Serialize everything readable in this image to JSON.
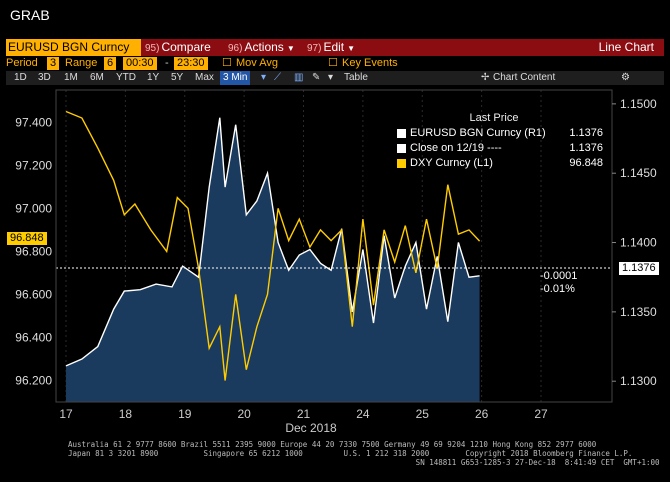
{
  "app_title": "GRAB",
  "toolbar": {
    "security": "EURUSD BGN Curncy",
    "compare_num": "95)",
    "compare": "Compare",
    "actions_num": "96)",
    "actions": "Actions",
    "edit_num": "97)",
    "edit": "Edit",
    "view_title": "Line Chart"
  },
  "settings": {
    "period_label": "Period",
    "period_value": "3",
    "range_label": "Range",
    "range_value": "6",
    "time_from": "00:30",
    "time_to": "23:30",
    "mov_avg": "Mov Avg",
    "key_events": "Key Events"
  },
  "range_tabs": {
    "items": [
      "1D",
      "3D",
      "1M",
      "6M",
      "YTD",
      "1Y",
      "5Y",
      "Max"
    ],
    "selected": "3 Min",
    "table": "Table",
    "chart_content": "Chart Content"
  },
  "legend": {
    "header": "Last Price",
    "rows": [
      {
        "label": "EURUSD BGN Curncy  (R1)",
        "value": "1.1376",
        "color": "#ffffff"
      },
      {
        "label": "Close on 12/19 ----",
        "value": "1.1376",
        "color": "#ffffff"
      },
      {
        "label": "DXY Curncy  (L1)",
        "value": "96.848",
        "color": "#ffcc00"
      }
    ]
  },
  "tags": {
    "left_value": "96.848",
    "right_value": "1.1376",
    "change": "-0.0001",
    "change_pct": "-0.01%"
  },
  "chart_data": {
    "type": "line",
    "x_ticks": [
      "17",
      "18",
      "19",
      "20",
      "21",
      "24",
      "25",
      "26",
      "27"
    ],
    "x_sublabel": "Dec 2018",
    "left_axis": {
      "ticks": [
        96.2,
        96.4,
        96.6,
        96.8,
        97.0,
        97.2,
        97.4
      ],
      "labels": [
        "96.200",
        "96.400",
        "96.600",
        "96.800",
        "97.000",
        "97.200",
        "97.400"
      ],
      "range": [
        96.1,
        97.55
      ]
    },
    "right_axis": {
      "ticks": [
        1.13,
        1.135,
        1.14,
        1.145,
        1.15
      ],
      "labels": [
        "1.1300",
        "1.1350",
        "1.1400",
        "1.1450",
        "1.1500"
      ],
      "range": [
        1.1285,
        1.151
      ]
    },
    "series": [
      {
        "name": "EURUSD BGN Curncy",
        "axis": "right",
        "color": "#ffffff",
        "fill": "#1a3a5e",
        "points": [
          [
            0,
            1.1311
          ],
          [
            0.3,
            1.1316
          ],
          [
            0.6,
            1.1325
          ],
          [
            0.9,
            1.1352
          ],
          [
            1.1,
            1.1365
          ],
          [
            1.4,
            1.1366
          ],
          [
            1.7,
            1.137
          ],
          [
            2.0,
            1.1368
          ],
          [
            2.2,
            1.1383
          ],
          [
            2.5,
            1.1375
          ],
          [
            2.7,
            1.144
          ],
          [
            2.9,
            1.149
          ],
          [
            3.0,
            1.144
          ],
          [
            3.2,
            1.1485
          ],
          [
            3.4,
            1.142
          ],
          [
            3.6,
            1.143
          ],
          [
            3.8,
            1.145
          ],
          [
            4.0,
            1.14
          ],
          [
            4.2,
            1.138
          ],
          [
            4.4,
            1.1391
          ],
          [
            4.6,
            1.1395
          ],
          [
            4.8,
            1.1385
          ],
          [
            5.0,
            1.138
          ],
          [
            5.2,
            1.141
          ],
          [
            5.4,
            1.135
          ],
          [
            5.6,
            1.1395
          ],
          [
            5.8,
            1.1342
          ],
          [
            6.0,
            1.1405
          ],
          [
            6.2,
            1.136
          ],
          [
            6.4,
            1.1383
          ],
          [
            6.6,
            1.14
          ],
          [
            6.8,
            1.1352
          ],
          [
            7.0,
            1.139
          ],
          [
            7.2,
            1.1343
          ],
          [
            7.4,
            1.14
          ],
          [
            7.6,
            1.1375
          ],
          [
            7.8,
            1.1376
          ]
        ]
      },
      {
        "name": "DXY Curncy",
        "axis": "left",
        "color": "#ffcc00",
        "points": [
          [
            0,
            97.45
          ],
          [
            0.3,
            97.42
          ],
          [
            0.6,
            97.28
          ],
          [
            0.9,
            97.13
          ],
          [
            1.1,
            96.97
          ],
          [
            1.3,
            97.02
          ],
          [
            1.6,
            96.9
          ],
          [
            1.9,
            96.8
          ],
          [
            2.1,
            97.05
          ],
          [
            2.3,
            97.0
          ],
          [
            2.5,
            96.72
          ],
          [
            2.7,
            96.35
          ],
          [
            2.9,
            96.45
          ],
          [
            3.0,
            96.2
          ],
          [
            3.2,
            96.6
          ],
          [
            3.4,
            96.25
          ],
          [
            3.6,
            96.45
          ],
          [
            3.8,
            96.6
          ],
          [
            4.0,
            97.0
          ],
          [
            4.2,
            96.85
          ],
          [
            4.4,
            96.95
          ],
          [
            4.6,
            96.82
          ],
          [
            4.8,
            96.9
          ],
          [
            5.0,
            96.85
          ],
          [
            5.2,
            96.9
          ],
          [
            5.4,
            96.45
          ],
          [
            5.6,
            96.95
          ],
          [
            5.8,
            96.55
          ],
          [
            6.0,
            96.9
          ],
          [
            6.2,
            96.75
          ],
          [
            6.4,
            96.92
          ],
          [
            6.6,
            96.7
          ],
          [
            6.8,
            96.95
          ],
          [
            7.0,
            96.72
          ],
          [
            7.2,
            97.11
          ],
          [
            7.4,
            96.88
          ],
          [
            7.6,
            96.9
          ],
          [
            7.8,
            96.848
          ]
        ]
      }
    ]
  }
}
